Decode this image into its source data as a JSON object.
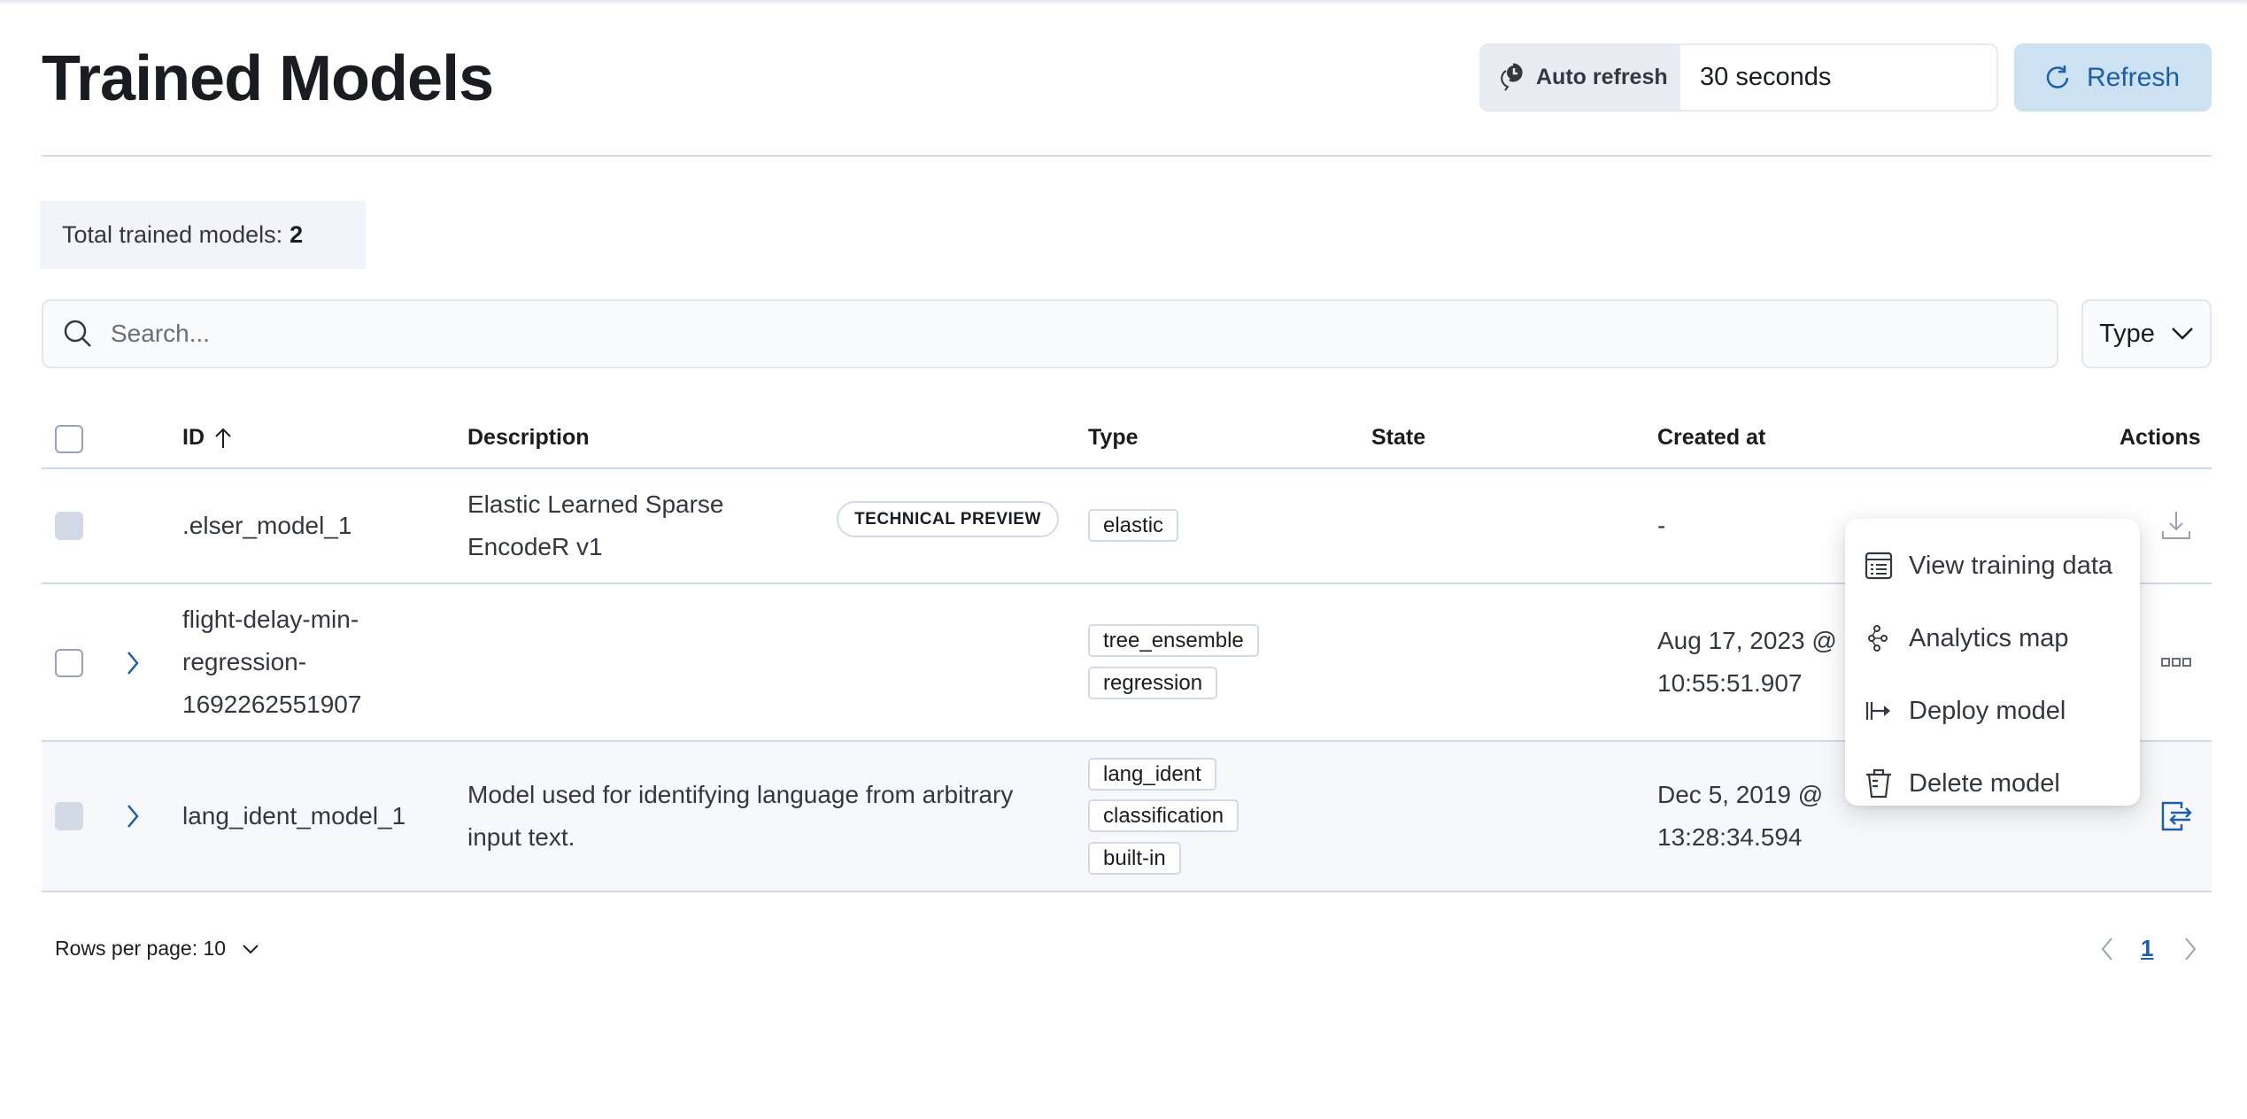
{
  "header": {
    "title": "Trained Models",
    "auto_refresh_label": "Auto refresh",
    "auto_refresh_value": "30 seconds",
    "refresh_label": "Refresh"
  },
  "summary": {
    "label": "Total trained models:",
    "count": "2"
  },
  "search": {
    "placeholder": "Search...",
    "type_filter_label": "Type"
  },
  "table": {
    "columns": [
      "ID",
      "Description",
      "Type",
      "State",
      "Created at",
      "Actions"
    ],
    "sort": {
      "column": "ID",
      "direction": "ascending"
    },
    "rows": [
      {
        "id": ".elser_model_1",
        "description": "Elastic Learned Sparse EncodeR v1",
        "description_lines": [
          "Elastic Learned Sparse",
          "EncodeR v1"
        ],
        "preview_badge": "TECHNICAL PREVIEW",
        "types": [
          "elastic"
        ],
        "state": "",
        "created_at": "-",
        "action_icon": "download-icon"
      },
      {
        "id": "flight-delay-min-regression-1692262551907",
        "id_lines": [
          "flight-delay-min-",
          "regression-",
          "1692262551907"
        ],
        "description": "",
        "types": [
          "tree_ensemble",
          "regression"
        ],
        "state": "",
        "created_at": "Aug 17, 2023 @ 10:55:51.907",
        "created_lines": [
          "Aug 17, 2023 @",
          "10:55:51.907"
        ],
        "action_icon": "more-icon"
      },
      {
        "id": "lang_ident_model_1",
        "description": "Model used for identifying language from arbitrary input text.",
        "description_lines": [
          "Model used for identifying language from arbitrary",
          "input text."
        ],
        "types": [
          "lang_ident",
          "classification",
          "built-in"
        ],
        "state": "",
        "created_at": "Dec 5, 2019 @ 13:28:34.594",
        "created_lines": [
          "Dec 5, 2019 @",
          "13:28:34.594"
        ],
        "action_icon": "pipeline-test-icon"
      }
    ]
  },
  "actions_menu": {
    "items": [
      {
        "label": "View training data",
        "icon": "table-icon"
      },
      {
        "label": "Analytics map",
        "icon": "graph-icon"
      },
      {
        "label": "Deploy model",
        "icon": "deploy-icon"
      },
      {
        "label": "Delete model",
        "icon": "trash-icon"
      }
    ]
  },
  "footer": {
    "rows_per_page": "Rows per page: 10",
    "current_page": "1"
  },
  "colors": {
    "accent": "#1e5ea3",
    "refresh_bg": "#cce1f1",
    "border": "#d3dae6"
  }
}
